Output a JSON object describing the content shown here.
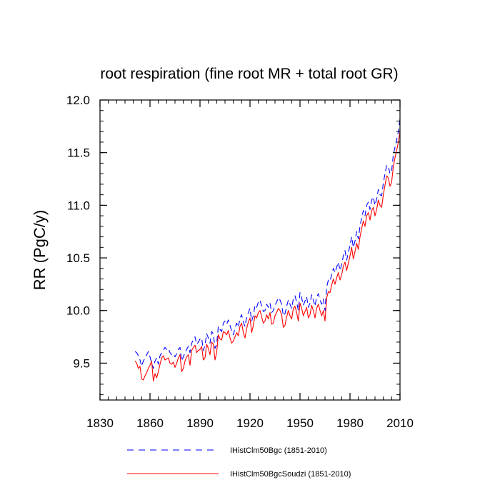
{
  "chart_data": {
    "type": "line",
    "title": "root respiration (fine root MR + total root GR)",
    "xlabel": "",
    "ylabel": "RR  (PgC/y)",
    "xlim": [
      1830,
      2010
    ],
    "ylim": [
      9.15,
      12.0
    ],
    "x_ticks": [
      1830,
      1860,
      1890,
      1920,
      1950,
      1980,
      2010
    ],
    "x_minor_step": 5,
    "y_ticks": [
      9.5,
      10.0,
      10.5,
      11.0,
      11.5,
      12.0
    ],
    "y_tick_labels": [
      "9.5",
      "10.0",
      "10.5",
      "11.0",
      "11.5",
      "12.0"
    ],
    "y_minor_step": 0.1,
    "grid": false,
    "legend_position": "bottom",
    "x_start": 1851,
    "series": [
      {
        "name": "IHistClm50Bgc (1851-2010)",
        "color": "#0000ff",
        "dash": "dashed",
        "values": [
          9.61,
          9.6,
          9.57,
          9.53,
          9.47,
          9.52,
          9.55,
          9.58,
          9.61,
          9.56,
          9.5,
          9.45,
          9.52,
          9.55,
          9.49,
          9.57,
          9.6,
          9.62,
          9.65,
          9.63,
          9.64,
          9.6,
          9.58,
          9.59,
          9.56,
          9.59,
          9.63,
          9.65,
          9.52,
          9.56,
          9.6,
          9.63,
          9.66,
          9.6,
          9.69,
          9.72,
          9.75,
          9.68,
          9.7,
          9.73,
          9.74,
          9.62,
          9.67,
          9.78,
          9.74,
          9.69,
          9.8,
          9.78,
          9.64,
          9.68,
          9.85,
          9.82,
          9.8,
          9.88,
          9.9,
          9.87,
          9.91,
          9.86,
          9.8,
          9.77,
          9.83,
          9.88,
          9.84,
          9.93,
          9.96,
          9.89,
          9.85,
          9.94,
          9.98,
          10.02,
          9.9,
          9.95,
          10.05,
          10.03,
          10.08,
          10.1,
          10.04,
          9.99,
          10.0,
          10.06,
          10.03,
          10.07,
          9.98,
          10.0,
          10.05,
          10.08,
          10.12,
          10.1,
          10.06,
          9.95,
          9.97,
          10.04,
          10.1,
          10.06,
          10.02,
          10.11,
          10.14,
          10.08,
          10.0,
          10.17,
          10.12,
          10.05,
          10.09,
          10.13,
          10.03,
          10.07,
          10.15,
          10.1,
          10.04,
          10.13,
          10.16,
          10.1,
          10.06,
          10.11,
          10.0,
          10.22,
          10.29,
          10.28,
          10.34,
          10.4,
          10.36,
          10.41,
          10.46,
          10.38,
          10.44,
          10.52,
          10.57,
          10.48,
          10.55,
          10.62,
          10.7,
          10.6,
          10.66,
          10.75,
          10.68,
          10.8,
          10.88,
          10.95,
          10.9,
          11.0,
          11.03,
          10.96,
          11.05,
          11.08,
          11.0,
          11.06,
          11.15,
          11.1,
          11.09,
          11.21,
          11.3,
          11.38,
          11.37,
          11.3,
          11.33,
          11.48,
          11.55,
          11.62,
          11.7,
          11.82
        ]
      },
      {
        "name": "IHistClm50BgcSoudzi (1851-2010)",
        "color": "#ff0000",
        "dash": "solid",
        "values": [
          9.52,
          9.5,
          9.45,
          9.47,
          9.35,
          9.34,
          9.38,
          9.41,
          9.45,
          9.48,
          9.52,
          9.33,
          9.4,
          9.36,
          9.42,
          9.49,
          9.55,
          9.57,
          9.53,
          9.54,
          9.55,
          9.5,
          9.49,
          9.51,
          9.46,
          9.5,
          9.55,
          9.58,
          9.42,
          9.45,
          9.52,
          9.56,
          9.58,
          9.48,
          9.62,
          9.65,
          9.67,
          9.6,
          9.62,
          9.63,
          9.66,
          9.53,
          9.55,
          9.68,
          9.64,
          9.58,
          9.7,
          9.68,
          9.53,
          9.6,
          9.77,
          9.73,
          9.72,
          9.8,
          9.79,
          9.77,
          9.81,
          9.74,
          9.69,
          9.71,
          9.75,
          9.79,
          9.76,
          9.85,
          9.88,
          9.79,
          9.74,
          9.83,
          9.89,
          9.93,
          9.79,
          9.86,
          9.95,
          9.93,
          9.98,
          10.0,
          9.94,
          9.88,
          9.9,
          9.96,
          9.92,
          9.98,
          9.87,
          9.88,
          9.95,
          9.98,
          10.02,
          10.0,
          9.96,
          9.84,
          9.86,
          9.94,
          10.0,
          9.95,
          9.92,
          10.02,
          10.04,
          9.98,
          9.9,
          10.07,
          10.02,
          9.95,
          9.99,
          10.03,
          9.93,
          9.96,
          10.05,
          10.0,
          9.93,
          10.02,
          10.06,
          10.0,
          9.95,
          10.0,
          9.9,
          10.12,
          10.18,
          10.17,
          10.24,
          10.3,
          10.25,
          10.31,
          10.36,
          10.29,
          10.34,
          10.42,
          10.46,
          10.38,
          10.45,
          10.52,
          10.6,
          10.49,
          10.56,
          10.64,
          10.58,
          10.7,
          10.78,
          10.85,
          10.8,
          10.9,
          10.93,
          10.86,
          10.95,
          10.98,
          10.9,
          10.96,
          11.05,
          11.0,
          10.98,
          11.1,
          11.19,
          11.28,
          11.26,
          11.18,
          11.22,
          11.37,
          11.45,
          11.52,
          11.6,
          11.7
        ]
      }
    ]
  }
}
